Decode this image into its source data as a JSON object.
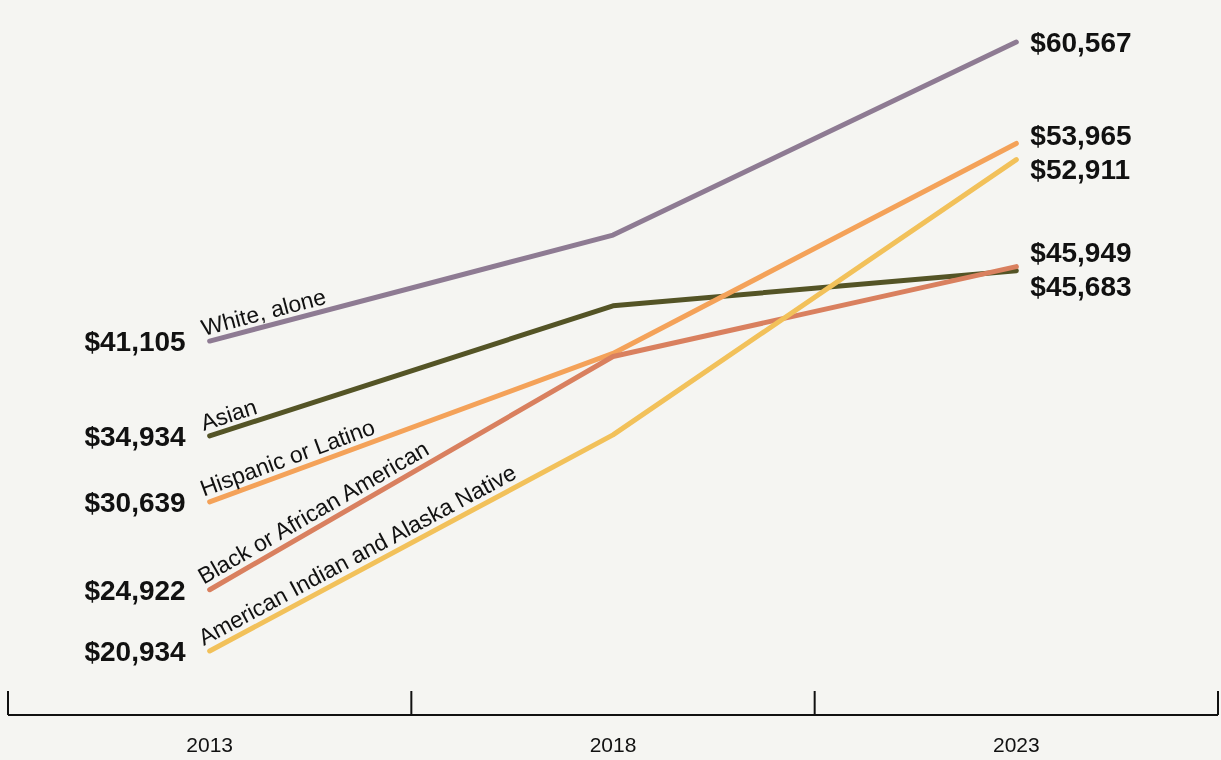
{
  "chart_data": {
    "type": "line",
    "categories": [
      "2013",
      "2018",
      "2023"
    ],
    "series": [
      {
        "name": "White, alone",
        "color": "#8e7b93",
        "values": [
          41105,
          48000,
          60567
        ],
        "value_labels": [
          "$41,105",
          null,
          "$60,567"
        ]
      },
      {
        "name": "Asian",
        "color": "#545426",
        "values": [
          34934,
          43400,
          45683
        ],
        "value_labels": [
          "$34,934",
          null,
          "$45,683"
        ]
      },
      {
        "name": "Hispanic or Latino",
        "color": "#f4a259",
        "values": [
          30639,
          40300,
          53965
        ],
        "value_labels": [
          "$30,639",
          null,
          "$53,965"
        ]
      },
      {
        "name": "Black or African American",
        "color": "#d9805f",
        "values": [
          24922,
          40100,
          45949
        ],
        "value_labels": [
          "$24,922",
          null,
          "$45,949"
        ]
      },
      {
        "name": "American Indian and Alaska Native",
        "color": "#f2c15a",
        "values": [
          20934,
          35000,
          52911
        ],
        "value_labels": [
          "$20,934",
          null,
          "$52,911"
        ]
      }
    ],
    "legend": false,
    "line_style": "solid",
    "marker": "none"
  }
}
